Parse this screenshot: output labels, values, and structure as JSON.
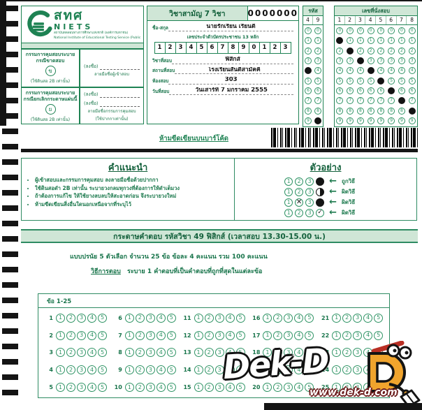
{
  "colors": {
    "green": "#1e8253",
    "green_dark": "#14613c",
    "green_light_bg": "#cfe6d6",
    "black": "#161616",
    "mascot_orange": "#f0a42d",
    "pencil_red": "#b92f24"
  },
  "logo": {
    "thai": "สทศ",
    "latin": "NIETS",
    "org_thai": "สถาบันทดสอบทางการศึกษาแห่งชาติ (องค์การมหาชน)",
    "org_en": "National Institute of Educational Testing Service (Public Organization)"
  },
  "header": {
    "exam_title": "วิชาสามัญ 7 วิชา",
    "serial": "0000000"
  },
  "proctor_boxes": [
    {
      "title_line1": "กรรมการคุมสอบระบาย",
      "title_line2": "กรณีขาดสอบ",
      "bubble_letter": "ข",
      "note": "(ใช้ดินสอ 2B เท่านั้น)"
    },
    {
      "title_line1": "กรรมการคุมสอบระบาย",
      "title_line2": "กรณียกเลิกกระดาษแผ่นนี้",
      "bubble_letter": "ย",
      "note": "(ใช้ดินสอ 2B เท่านั้น)"
    }
  ],
  "signatures": {
    "sign_label": "(ลงชื่อ)",
    "examinee_caption": "ลายมือชื่อผู้เข้าสอบ",
    "proctor_caption": "ลายมือชื่อกรรมการคุมสอบ",
    "proctor_note": "(ใช้ปากกาเท่านั้น)"
  },
  "form": {
    "name_label": "ชื่อ-สกุล",
    "name_value": "นายรักเรียน  เรียนดี",
    "id_label": "เลขประจำตัวบัตรประชาชน 13 หลัก",
    "id_digits": [
      "1",
      "2",
      "3",
      "4",
      "5",
      "6",
      "7",
      "8",
      "9",
      "0",
      "1",
      "2",
      "3"
    ],
    "subject_label": "วิชาที่สอบ",
    "subject_value": "ฟิสิกส์",
    "venue_label": "สถานที่สอบ",
    "venue_value": "โรงเรียนสันติสามัคคี",
    "room_label": "ห้องสอบ",
    "room_value": "303",
    "date_label": "วันที่สอบ",
    "date_value": "วันเสาร์ที่ 7 มกราคม 2555"
  },
  "code_grid": {
    "title": "รหัส",
    "columns": [
      "4",
      "9"
    ],
    "filled_digits": [
      4,
      9
    ]
  },
  "seat_grid": {
    "title": "เลขที่นั่งสอบ",
    "columns": [
      "1",
      "2",
      "3",
      "4",
      "5",
      "6",
      "7",
      "8"
    ],
    "filled_digits": [
      1,
      2,
      3,
      4,
      5,
      6,
      7,
      8
    ]
  },
  "barcode_note": "ห้ามขีดเขียนบนบาร์โค้ด",
  "instructions": {
    "title": "คำแนะนำ",
    "bullets": [
      "ผู้เข้าสอบและกรรมการคุมสอบ ลงลายมือชื่อด้วยปากกา",
      "ใช้ดินสอดำ 2B เท่านั้น ระบายวงกลมทุกวงที่ต้องการให้ดำเต็มวง",
      "ถ้าต้องการแก้ไข ให้ใช้ยางลบลบให้สะอาดก่อน จึงระบายวงใหม่",
      "ห้ามขีดเขียนสิ่งอื่นใดนอกเหนือจากที่ระบุไว้"
    ]
  },
  "example": {
    "title": "ตัวอย่าง",
    "rows": [
      {
        "cells": [
          "1",
          "2",
          "3",
          "filled"
        ],
        "label": "ถูกวิธี"
      },
      {
        "cells": [
          "1",
          "2",
          "3",
          "half"
        ],
        "label": "ผิดวิธี"
      },
      {
        "cells": [
          "1",
          "cross",
          "3",
          "filled"
        ],
        "label": "ผิดวิธี"
      },
      {
        "cells": [
          "1",
          "2",
          "3",
          "check"
        ],
        "label": "ผิดวิธี"
      }
    ]
  },
  "answer_section": {
    "bar_title": "กระดาษคำตอบ รหัสวิชา 49 ฟิสิกส์  (เวลาสอบ 13.30-15.00 น.)",
    "info_line": "แบบปรนัย 5 ตัวเลือก  จำนวน 25 ข้อ  ข้อละ 4 คะแนน รวม 100 คะแนน",
    "method_label": "วิธีการตอบ",
    "method_text": "ระบาย 1 คำตอบที่เป็นคำตอบที่ถูกที่สุดในแต่ละข้อ",
    "range_label": "ข้อ 1-25",
    "num_questions": 25,
    "num_choices": 5,
    "questions_per_row": 5
  },
  "watermark": {
    "brand": "Dek-D",
    "url": "www.dek-d.com"
  }
}
